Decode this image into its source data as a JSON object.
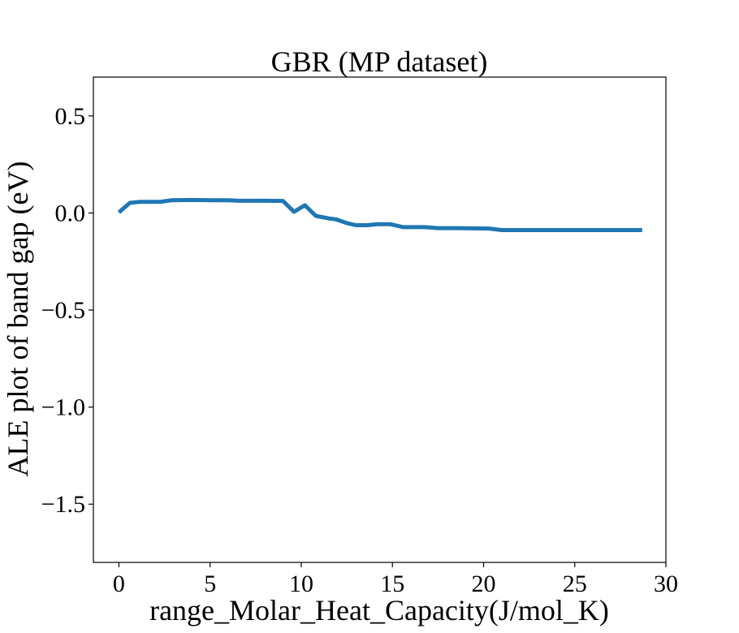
{
  "chart_data": {
    "type": "line",
    "title": "GBR (MP dataset)",
    "xlabel": "range_Molar_Heat_Capacity(J/mol_K)",
    "ylabel": "ALE plot of band gap (eV)",
    "xlim": [
      -1.4,
      30.0
    ],
    "ylim": [
      -1.8,
      0.7
    ],
    "xticks": [
      0,
      5,
      10,
      15,
      20,
      25,
      30
    ],
    "xtick_labels": [
      "0",
      "5",
      "10",
      "15",
      "20",
      "25",
      "30"
    ],
    "yticks": [
      0.5,
      0.0,
      -0.5,
      -1.0,
      -1.5
    ],
    "ytick_labels": [
      "0.5",
      "0.0",
      "−0.5",
      "−1.0",
      "−1.5"
    ],
    "grid": false,
    "legend": "none",
    "series": [
      {
        "color": "#1f77b4",
        "x": [
          0,
          0.6,
          1.1,
          2.3,
          2.9,
          4.0,
          5.2,
          6.0,
          6.6,
          8.0,
          9.0,
          9.6,
          10.2,
          10.8,
          11.5,
          11.9,
          12.5,
          13.0,
          13.6,
          14.2,
          14.9,
          15.6,
          16.8,
          17.5,
          18.5,
          20.3,
          21.0,
          22.0,
          24.0,
          26.0,
          28.7
        ],
        "y": [
          0.003,
          0.052,
          0.057,
          0.058,
          0.066,
          0.067,
          0.066,
          0.066,
          0.063,
          0.063,
          0.062,
          0.006,
          0.04,
          -0.015,
          -0.028,
          -0.033,
          -0.052,
          -0.063,
          -0.063,
          -0.058,
          -0.058,
          -0.073,
          -0.073,
          -0.078,
          -0.078,
          -0.08,
          -0.088,
          -0.088,
          -0.088,
          -0.088,
          -0.088
        ]
      }
    ]
  }
}
